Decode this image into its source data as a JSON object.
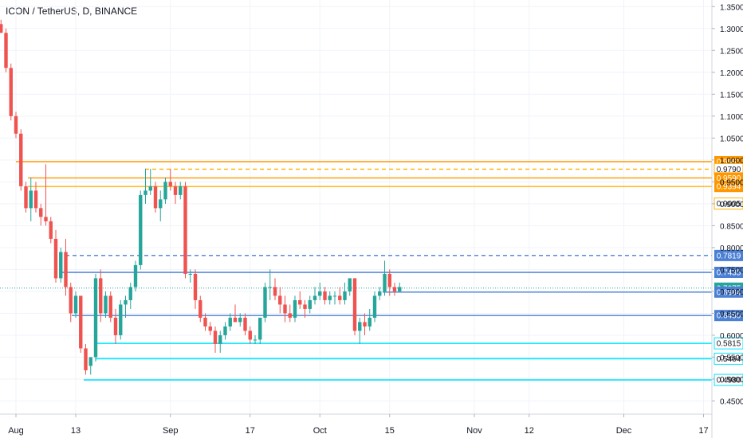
{
  "header": {
    "symbol": "ICON / TetherUS",
    "interval": "D",
    "exchange": "BINANCE"
  },
  "colors": {
    "up": "#26a69a",
    "down": "#ef5350",
    "grid": "#f0f3fa",
    "axis_text": "#131722",
    "orange": "#ff9800",
    "yellow": "#ffb300",
    "blue": "#4a7fd4",
    "cyan": "#00e5ff",
    "teal_dotted": "#26a69a"
  },
  "chart_data": {
    "type": "candlestick",
    "symbol": "ICON / TetherUS, D, BINANCE",
    "x_tick_labels": [
      {
        "label": "Aug",
        "date": "2019-08-01"
      },
      {
        "label": "13",
        "date": "2019-08-13"
      },
      {
        "label": "Sep",
        "date": "2019-09-01"
      },
      {
        "label": "17",
        "date": "2019-09-17"
      },
      {
        "label": "Oct",
        "date": "2019-10-01"
      },
      {
        "label": "15",
        "date": "2019-10-15"
      },
      {
        "label": "Nov",
        "date": "2019-11-01"
      },
      {
        "label": "12",
        "date": "2019-11-12"
      },
      {
        "label": "Dec",
        "date": "2019-12-01"
      },
      {
        "label": "17",
        "date": "2019-12-17"
      }
    ],
    "y_tick_labels": [
      "1.3500",
      "1.3000",
      "1.2500",
      "1.2000",
      "1.1500",
      "1.1000",
      "1.0500",
      "1.0000",
      "0.9500",
      "0.9000",
      "0.8500",
      "0.8000",
      "0.7500",
      "0.7000",
      "0.6500",
      "0.6000",
      "0.5500",
      "0.5000",
      "0.4500"
    ],
    "ylim": [
      0.42,
      1.365
    ],
    "start_date": "2019-07-29",
    "candles": [
      [
        1.31,
        1.32,
        1.29,
        1.29
      ],
      [
        1.29,
        1.3,
        1.2,
        1.21
      ],
      [
        1.21,
        1.22,
        1.09,
        1.1
      ],
      [
        1.1,
        1.11,
        1.05,
        1.06
      ],
      [
        1.06,
        1.07,
        0.93,
        0.94
      ],
      [
        0.94,
        0.95,
        0.88,
        0.89
      ],
      [
        0.89,
        0.96,
        0.86,
        0.93
      ],
      [
        0.93,
        0.95,
        0.88,
        0.89
      ],
      [
        0.89,
        0.9,
        0.85,
        0.87
      ],
      [
        0.87,
        0.99,
        0.85,
        0.86
      ],
      [
        0.86,
        0.87,
        0.81,
        0.82
      ],
      [
        0.82,
        0.84,
        0.72,
        0.73
      ],
      [
        0.73,
        0.8,
        0.72,
        0.79
      ],
      [
        0.79,
        0.82,
        0.69,
        0.71
      ],
      [
        0.71,
        0.72,
        0.63,
        0.65
      ],
      [
        0.65,
        0.7,
        0.64,
        0.69
      ],
      [
        0.69,
        0.69,
        0.56,
        0.57
      ],
      [
        0.57,
        0.58,
        0.51,
        0.52
      ],
      [
        0.53,
        0.55,
        0.51,
        0.55
      ],
      [
        0.55,
        0.74,
        0.54,
        0.73
      ],
      [
        0.73,
        0.75,
        0.63,
        0.65
      ],
      [
        0.65,
        0.7,
        0.64,
        0.69
      ],
      [
        0.69,
        0.7,
        0.63,
        0.64
      ],
      [
        0.64,
        0.66,
        0.58,
        0.6
      ],
      [
        0.6,
        0.68,
        0.59,
        0.67
      ],
      [
        0.67,
        0.69,
        0.64,
        0.68
      ],
      [
        0.68,
        0.72,
        0.66,
        0.71
      ],
      [
        0.71,
        0.77,
        0.7,
        0.76
      ],
      [
        0.76,
        0.93,
        0.75,
        0.92
      ],
      [
        0.92,
        0.98,
        0.9,
        0.93
      ],
      [
        0.93,
        0.98,
        0.92,
        0.94
      ],
      [
        0.94,
        0.95,
        0.88,
        0.89
      ],
      [
        0.89,
        0.93,
        0.86,
        0.91
      ],
      [
        0.91,
        0.96,
        0.9,
        0.95
      ],
      [
        0.95,
        0.98,
        0.93,
        0.94
      ],
      [
        0.94,
        0.95,
        0.9,
        0.92
      ],
      [
        0.92,
        0.95,
        0.91,
        0.94
      ],
      [
        0.94,
        0.95,
        0.73,
        0.74
      ],
      [
        0.74,
        0.75,
        0.72,
        0.74
      ],
      [
        0.74,
        0.75,
        0.66,
        0.68
      ],
      [
        0.68,
        0.69,
        0.63,
        0.64
      ],
      [
        0.64,
        0.65,
        0.61,
        0.62
      ],
      [
        0.62,
        0.63,
        0.6,
        0.61
      ],
      [
        0.61,
        0.62,
        0.56,
        0.58
      ],
      [
        0.58,
        0.61,
        0.56,
        0.6
      ],
      [
        0.6,
        0.63,
        0.59,
        0.62
      ],
      [
        0.62,
        0.65,
        0.61,
        0.64
      ],
      [
        0.64,
        0.67,
        0.63,
        0.63
      ],
      [
        0.63,
        0.65,
        0.62,
        0.64
      ],
      [
        0.64,
        0.65,
        0.6,
        0.61
      ],
      [
        0.61,
        0.62,
        0.58,
        0.59
      ],
      [
        0.59,
        0.6,
        0.58,
        0.59
      ],
      [
        0.59,
        0.64,
        0.58,
        0.64
      ],
      [
        0.64,
        0.72,
        0.63,
        0.71
      ],
      [
        0.71,
        0.75,
        0.68,
        0.71
      ],
      [
        0.71,
        0.73,
        0.68,
        0.69
      ],
      [
        0.69,
        0.71,
        0.65,
        0.67
      ],
      [
        0.67,
        0.69,
        0.63,
        0.65
      ],
      [
        0.65,
        0.67,
        0.63,
        0.64
      ],
      [
        0.64,
        0.69,
        0.63,
        0.68
      ],
      [
        0.68,
        0.7,
        0.66,
        0.67
      ],
      [
        0.67,
        0.68,
        0.64,
        0.66
      ],
      [
        0.66,
        0.69,
        0.65,
        0.68
      ],
      [
        0.68,
        0.71,
        0.67,
        0.69
      ],
      [
        0.69,
        0.72,
        0.68,
        0.7
      ],
      [
        0.7,
        0.71,
        0.67,
        0.68
      ],
      [
        0.68,
        0.7,
        0.67,
        0.69
      ],
      [
        0.69,
        0.7,
        0.67,
        0.69
      ],
      [
        0.69,
        0.71,
        0.67,
        0.68
      ],
      [
        0.68,
        0.72,
        0.67,
        0.7
      ],
      [
        0.7,
        0.73,
        0.69,
        0.73
      ],
      [
        0.73,
        0.73,
        0.6,
        0.61
      ],
      [
        0.61,
        0.64,
        0.58,
        0.63
      ],
      [
        0.63,
        0.65,
        0.6,
        0.62
      ],
      [
        0.62,
        0.66,
        0.61,
        0.64
      ],
      [
        0.64,
        0.7,
        0.63,
        0.69
      ],
      [
        0.69,
        0.71,
        0.68,
        0.7
      ],
      [
        0.7,
        0.77,
        0.69,
        0.74
      ],
      [
        0.74,
        0.75,
        0.69,
        0.71
      ],
      [
        0.71,
        0.72,
        0.69,
        0.7
      ],
      [
        0.7,
        0.72,
        0.7,
        0.71
      ]
    ],
    "horizontal_levels": [
      {
        "label": "0.9961",
        "value": 0.9961,
        "style": "solid",
        "color": "orange"
      },
      {
        "label": "0.9790",
        "value": 0.979,
        "style": "dashed",
        "color": "yellow"
      },
      {
        "label": "0.9590",
        "value": 0.959,
        "style": "solid",
        "color": "orange"
      },
      {
        "label": "0.9394",
        "value": 0.9394,
        "style": "solid",
        "color": "yellow"
      },
      {
        "label": "0.9005",
        "value": 0.9005,
        "style": "none",
        "color": "yellow"
      },
      {
        "label": "0.7819",
        "value": 0.7819,
        "style": "dashed",
        "color": "blue"
      },
      {
        "label": "0.7435",
        "value": 0.7435,
        "style": "solid",
        "color": "blue"
      },
      {
        "label": "0.7075",
        "value": 0.7075,
        "style": "dotted",
        "color": "teal_dotted"
      },
      {
        "label": "0.6984",
        "value": 0.6984,
        "style": "solid",
        "color": "blue"
      },
      {
        "label": "0.6450",
        "value": 0.645,
        "style": "solid",
        "color": "blue"
      },
      {
        "label": "0.5815",
        "value": 0.5815,
        "style": "solid",
        "color": "cyan"
      },
      {
        "label": "0.5464",
        "value": 0.5464,
        "style": "solid",
        "color": "cyan"
      },
      {
        "label": "0.4980",
        "value": 0.498,
        "style": "solid",
        "color": "cyan"
      }
    ]
  }
}
